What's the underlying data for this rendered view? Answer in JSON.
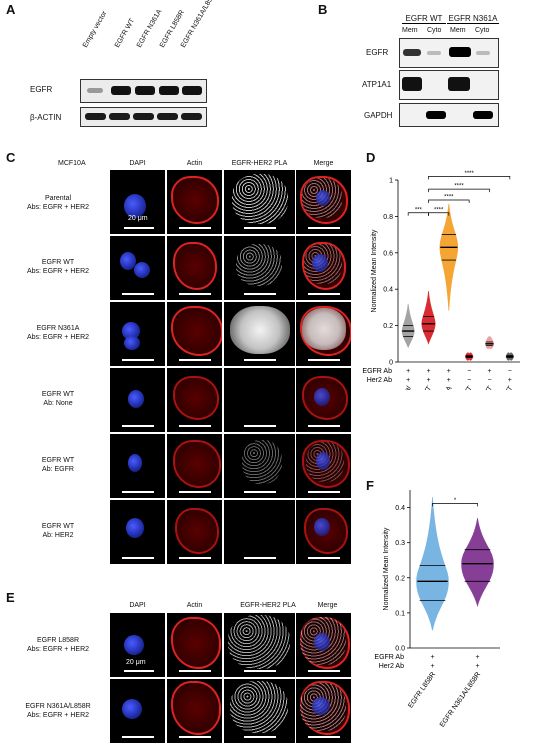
{
  "panels": {
    "A": "A",
    "B": "B",
    "C": "C",
    "D": "D",
    "E": "E",
    "F": "F"
  },
  "panel_a": {
    "lanes": [
      "Empty vector",
      "EGFR WT",
      "EGFR N361A",
      "EGFR L858R",
      "EGFR N361A/L858R"
    ],
    "rows": [
      "EGFR",
      "β-ACTIN"
    ]
  },
  "panel_b": {
    "groups": [
      "EGFR WT",
      "EGFR N361A"
    ],
    "fractions": [
      "Mem",
      "Cyto",
      "Mem",
      "Cyto"
    ],
    "rows": [
      "EGFR",
      "ATP1A1",
      "GAPDH"
    ]
  },
  "panel_c": {
    "cell_line": "MCF10A",
    "columns": [
      "DAPI",
      "Actin",
      "EGFR-HER2 PLA",
      "Merge"
    ],
    "scalebar": "20 μm",
    "rows": [
      {
        "line1": "Parental",
        "line2": "Abs: EGFR + HER2"
      },
      {
        "line1": "EGFR WT",
        "line2": "Abs: EGFR + HER2"
      },
      {
        "line1": "EGFR N361A",
        "line2": "Abs: EGFR + HER2"
      },
      {
        "line1": "EGFR WT",
        "line2": "Ab: None"
      },
      {
        "line1": "EGFR WT",
        "line2": "Ab: EGFR"
      },
      {
        "line1": "EGFR WT",
        "line2": "Ab: HER2"
      }
    ]
  },
  "panel_e": {
    "columns": [
      "DAPI",
      "Actin",
      "EGFR-HER2 PLA",
      "Merge"
    ],
    "scalebar": "20 μm",
    "rows": [
      {
        "line1": "EGFR L858R",
        "line2": "Abs: EGFR + HER2"
      },
      {
        "line1": "EGFR N361A/L858R",
        "line2": "Abs: EGFR  + HER2"
      }
    ]
  },
  "chart_data": [
    {
      "type": "violin",
      "panel": "D",
      "ylabel": "Normalized Mean Intensity",
      "ylim": [
        0,
        1
      ],
      "yticks": [
        "0",
        "0.2",
        "0.4",
        "0.6",
        "0.8",
        "1"
      ],
      "categories": [
        "Parental",
        "EGFR WT",
        "EGFR N361A",
        "EGFR WT",
        "EGFR WT",
        "EGFR WT"
      ],
      "row_labels": [
        "EGFR Ab",
        "Her2 Ab"
      ],
      "egfr_ab": [
        "+",
        "+",
        "+",
        "−",
        "+",
        "−"
      ],
      "her2_ab": [
        "+",
        "+",
        "+",
        "−",
        "−",
        "+"
      ],
      "colors": [
        "#9a9a9a",
        "#d7141c",
        "#f39c1f",
        "#d7141c",
        "#e89a9a",
        "#555555"
      ],
      "medians": [
        0.17,
        0.21,
        0.63,
        0.03,
        0.1,
        0.03
      ],
      "q1": [
        0.14,
        0.17,
        0.56,
        0.025,
        0.09,
        0.025
      ],
      "q3": [
        0.2,
        0.25,
        0.7,
        0.035,
        0.11,
        0.035
      ],
      "ranges": [
        [
          0.08,
          0.32
        ],
        [
          0.1,
          0.39
        ],
        [
          0.28,
          0.87
        ],
        [
          0.02,
          0.04
        ],
        [
          0.08,
          0.14
        ],
        [
          0.02,
          0.04
        ]
      ],
      "significance": [
        "***",
        "****",
        "****",
        "****",
        "****"
      ]
    },
    {
      "type": "violin",
      "panel": "F",
      "ylabel": "Normalized Mean Intensity",
      "ylim": [
        0.0,
        0.45
      ],
      "yticks": [
        "0.0",
        "0.1",
        "0.2",
        "0.3",
        "0.4"
      ],
      "categories": [
        "EGFR L858R",
        "EGFR N361A/L858R"
      ],
      "row_labels": [
        "EGFR Ab",
        "Her2 Ab"
      ],
      "egfr_ab": [
        "+",
        "+"
      ],
      "her2_ab": [
        "+",
        "+"
      ],
      "colors": [
        "#6aaee0",
        "#7a2a8c"
      ],
      "medians": [
        0.19,
        0.24
      ],
      "q1": [
        0.135,
        0.19
      ],
      "q3": [
        0.235,
        0.28
      ],
      "ranges": [
        [
          0.05,
          0.43
        ],
        [
          0.12,
          0.37
        ]
      ],
      "significance": [
        "*"
      ]
    }
  ]
}
